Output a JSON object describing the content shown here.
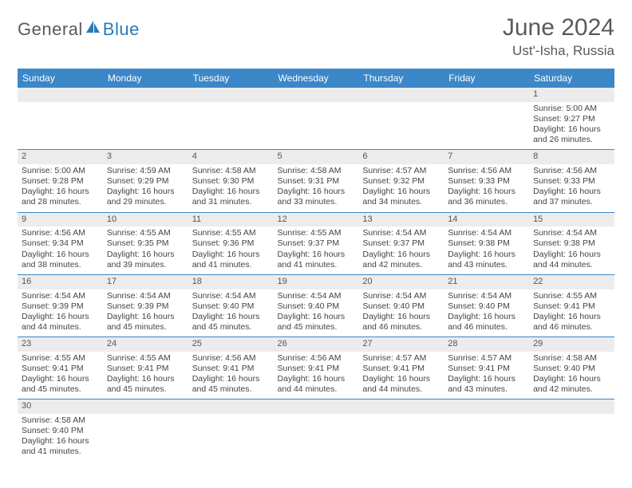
{
  "logo": {
    "general": "General",
    "blue": "Blue"
  },
  "title": "June 2024",
  "location": "Ust'-Isha, Russia",
  "weekdays": [
    "Sunday",
    "Monday",
    "Tuesday",
    "Wednesday",
    "Thursday",
    "Friday",
    "Saturday"
  ],
  "colors": {
    "headerBg": "#3b87c8",
    "headerText": "#ffffff",
    "dayNumBg": "#ececec",
    "cellBorder": "#3b87c8",
    "titleColor": "#5a5a5a",
    "logoBlue": "#2a7ab8"
  },
  "days": [
    {
      "n": 1,
      "sr": "5:00 AM",
      "ss": "9:27 PM",
      "dl": "16 hours and 26 minutes."
    },
    {
      "n": 2,
      "sr": "5:00 AM",
      "ss": "9:28 PM",
      "dl": "16 hours and 28 minutes."
    },
    {
      "n": 3,
      "sr": "4:59 AM",
      "ss": "9:29 PM",
      "dl": "16 hours and 29 minutes."
    },
    {
      "n": 4,
      "sr": "4:58 AM",
      "ss": "9:30 PM",
      "dl": "16 hours and 31 minutes."
    },
    {
      "n": 5,
      "sr": "4:58 AM",
      "ss": "9:31 PM",
      "dl": "16 hours and 33 minutes."
    },
    {
      "n": 6,
      "sr": "4:57 AM",
      "ss": "9:32 PM",
      "dl": "16 hours and 34 minutes."
    },
    {
      "n": 7,
      "sr": "4:56 AM",
      "ss": "9:33 PM",
      "dl": "16 hours and 36 minutes."
    },
    {
      "n": 8,
      "sr": "4:56 AM",
      "ss": "9:33 PM",
      "dl": "16 hours and 37 minutes."
    },
    {
      "n": 9,
      "sr": "4:56 AM",
      "ss": "9:34 PM",
      "dl": "16 hours and 38 minutes."
    },
    {
      "n": 10,
      "sr": "4:55 AM",
      "ss": "9:35 PM",
      "dl": "16 hours and 39 minutes."
    },
    {
      "n": 11,
      "sr": "4:55 AM",
      "ss": "9:36 PM",
      "dl": "16 hours and 41 minutes."
    },
    {
      "n": 12,
      "sr": "4:55 AM",
      "ss": "9:37 PM",
      "dl": "16 hours and 41 minutes."
    },
    {
      "n": 13,
      "sr": "4:54 AM",
      "ss": "9:37 PM",
      "dl": "16 hours and 42 minutes."
    },
    {
      "n": 14,
      "sr": "4:54 AM",
      "ss": "9:38 PM",
      "dl": "16 hours and 43 minutes."
    },
    {
      "n": 15,
      "sr": "4:54 AM",
      "ss": "9:38 PM",
      "dl": "16 hours and 44 minutes."
    },
    {
      "n": 16,
      "sr": "4:54 AM",
      "ss": "9:39 PM",
      "dl": "16 hours and 44 minutes."
    },
    {
      "n": 17,
      "sr": "4:54 AM",
      "ss": "9:39 PM",
      "dl": "16 hours and 45 minutes."
    },
    {
      "n": 18,
      "sr": "4:54 AM",
      "ss": "9:40 PM",
      "dl": "16 hours and 45 minutes."
    },
    {
      "n": 19,
      "sr": "4:54 AM",
      "ss": "9:40 PM",
      "dl": "16 hours and 45 minutes."
    },
    {
      "n": 20,
      "sr": "4:54 AM",
      "ss": "9:40 PM",
      "dl": "16 hours and 46 minutes."
    },
    {
      "n": 21,
      "sr": "4:54 AM",
      "ss": "9:40 PM",
      "dl": "16 hours and 46 minutes."
    },
    {
      "n": 22,
      "sr": "4:55 AM",
      "ss": "9:41 PM",
      "dl": "16 hours and 46 minutes."
    },
    {
      "n": 23,
      "sr": "4:55 AM",
      "ss": "9:41 PM",
      "dl": "16 hours and 45 minutes."
    },
    {
      "n": 24,
      "sr": "4:55 AM",
      "ss": "9:41 PM",
      "dl": "16 hours and 45 minutes."
    },
    {
      "n": 25,
      "sr": "4:56 AM",
      "ss": "9:41 PM",
      "dl": "16 hours and 45 minutes."
    },
    {
      "n": 26,
      "sr": "4:56 AM",
      "ss": "9:41 PM",
      "dl": "16 hours and 44 minutes."
    },
    {
      "n": 27,
      "sr": "4:57 AM",
      "ss": "9:41 PM",
      "dl": "16 hours and 44 minutes."
    },
    {
      "n": 28,
      "sr": "4:57 AM",
      "ss": "9:41 PM",
      "dl": "16 hours and 43 minutes."
    },
    {
      "n": 29,
      "sr": "4:58 AM",
      "ss": "9:40 PM",
      "dl": "16 hours and 42 minutes."
    },
    {
      "n": 30,
      "sr": "4:58 AM",
      "ss": "9:40 PM",
      "dl": "16 hours and 41 minutes."
    }
  ],
  "firstWeekday": 6,
  "labels": {
    "sunrise": "Sunrise: ",
    "sunset": "Sunset: ",
    "daylight": "Daylight: "
  }
}
